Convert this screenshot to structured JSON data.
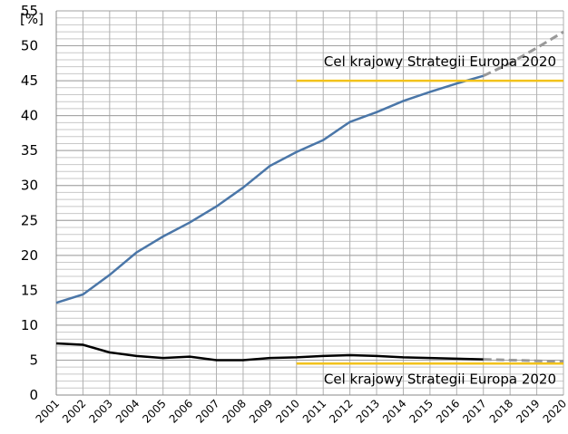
{
  "chart_data": {
    "type": "line",
    "y_label": "[%]",
    "x": [
      2001,
      2002,
      2003,
      2004,
      2005,
      2006,
      2007,
      2008,
      2009,
      2010,
      2011,
      2012,
      2013,
      2014,
      2015,
      2016,
      2017,
      2018,
      2019,
      2020
    ],
    "xlim": [
      2001,
      2020
    ],
    "ylim": [
      0,
      55
    ],
    "yticks": [
      0,
      5,
      10,
      15,
      20,
      25,
      30,
      35,
      40,
      45,
      50,
      55
    ],
    "yminor": 1,
    "grid": true,
    "series": [
      {
        "color": "#4a76a8",
        "dashed": false,
        "values": [
          13.2,
          14.4,
          17.2,
          20.4,
          22.7,
          24.7,
          27.0,
          29.7,
          32.8,
          34.8,
          36.5,
          39.1,
          40.5,
          42.1,
          43.4,
          44.6,
          45.7,
          null,
          null,
          null
        ]
      },
      {
        "color": "#999999",
        "dashed": true,
        "values": [
          null,
          null,
          null,
          null,
          null,
          null,
          null,
          null,
          null,
          null,
          null,
          null,
          null,
          null,
          null,
          null,
          45.7,
          47.5,
          49.7,
          52.0
        ]
      },
      {
        "color": "#000000",
        "dashed": false,
        "values": [
          7.4,
          7.2,
          6.1,
          5.6,
          5.3,
          5.5,
          5.0,
          5.0,
          5.3,
          5.4,
          5.6,
          5.7,
          5.6,
          5.4,
          5.3,
          5.2,
          5.1,
          null,
          null,
          null
        ]
      },
      {
        "color": "#999999",
        "dashed": true,
        "values": [
          null,
          null,
          null,
          null,
          null,
          null,
          null,
          null,
          null,
          null,
          null,
          null,
          null,
          null,
          null,
          null,
          5.1,
          5.0,
          4.9,
          4.8
        ]
      },
      {
        "color": "#f2c21b",
        "dashed": false,
        "values": [
          null,
          null,
          null,
          null,
          null,
          null,
          null,
          null,
          null,
          45,
          45,
          45,
          45,
          45,
          45,
          45,
          45,
          45,
          45,
          45
        ]
      },
      {
        "color": "#f2c21b",
        "dashed": false,
        "values": [
          null,
          null,
          null,
          null,
          null,
          null,
          null,
          null,
          null,
          4.5,
          4.5,
          4.5,
          4.5,
          4.5,
          4.5,
          4.5,
          4.5,
          4.5,
          4.5,
          4.5
        ]
      }
    ],
    "annotations": [
      {
        "text": "Cel krajowy Strategii Europa 2020",
        "x": 2020,
        "y": 45,
        "position": "above"
      },
      {
        "text": "Cel krajowy Strategii Europa 2020",
        "x": 2020,
        "y": 4.5,
        "position": "below"
      }
    ]
  }
}
